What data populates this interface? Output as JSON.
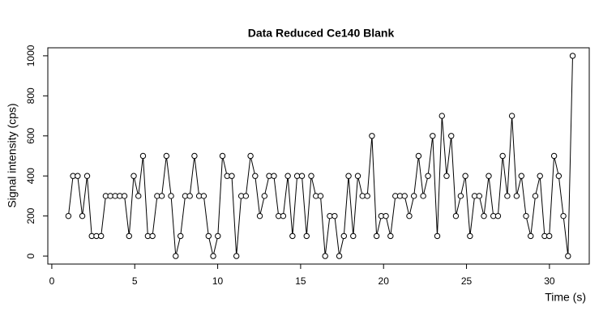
{
  "chart_data": {
    "type": "line",
    "title": "Data Reduced Ce140 Blank",
    "x_label": "Time (s)",
    "y_label": "Signal intensity (cps)",
    "x": [
      1.0,
      1.28,
      1.56,
      1.84,
      2.13,
      2.41,
      2.69,
      2.97,
      3.25,
      3.53,
      3.82,
      4.1,
      4.38,
      4.66,
      4.94,
      5.22,
      5.5,
      5.79,
      6.07,
      6.35,
      6.63,
      6.91,
      7.19,
      7.47,
      7.76,
      8.04,
      8.32,
      8.6,
      8.88,
      9.16,
      9.45,
      9.73,
      10.01,
      10.29,
      10.57,
      10.85,
      11.13,
      11.42,
      11.7,
      11.98,
      12.26,
      12.54,
      12.82,
      13.1,
      13.39,
      13.67,
      13.95,
      14.23,
      14.51,
      14.79,
      15.08,
      15.36,
      15.64,
      15.92,
      16.2,
      16.48,
      16.76,
      17.05,
      17.33,
      17.61,
      17.89,
      18.17,
      18.45,
      18.73,
      19.02,
      19.3,
      19.58,
      19.86,
      20.14,
      20.42,
      20.71,
      20.99,
      21.27,
      21.55,
      21.83,
      22.11,
      22.39,
      22.68,
      22.96,
      23.24,
      23.52,
      23.8,
      24.08,
      24.36,
      24.65,
      24.93,
      25.21,
      25.49,
      25.77,
      26.05,
      26.34,
      26.62,
      26.9,
      27.18,
      27.46,
      27.74,
      28.02,
      28.31,
      28.59,
      28.87,
      29.15,
      29.43,
      29.71,
      29.99,
      30.28,
      30.56,
      30.84,
      31.12,
      31.4
    ],
    "values": [
      200,
      400,
      400,
      200,
      400,
      100,
      100,
      100,
      300,
      300,
      300,
      300,
      300,
      100,
      400,
      300,
      500,
      100,
      100,
      300,
      300,
      500,
      300,
      0,
      100,
      300,
      300,
      500,
      300,
      300,
      100,
      0,
      100,
      500,
      400,
      400,
      0,
      300,
      300,
      500,
      400,
      200,
      300,
      400,
      400,
      200,
      200,
      400,
      100,
      400,
      400,
      100,
      400,
      300,
      300,
      0,
      200,
      200,
      0,
      100,
      400,
      100,
      400,
      300,
      300,
      600,
      100,
      200,
      200,
      100,
      300,
      300,
      300,
      200,
      300,
      500,
      300,
      400,
      600,
      100,
      700,
      400,
      600,
      200,
      300,
      400,
      100,
      300,
      300,
      200,
      400,
      200,
      200,
      500,
      300,
      700,
      300,
      400,
      200,
      100,
      300,
      400,
      100,
      100,
      500,
      400,
      200,
      0,
      1000
    ],
    "color": "#000000",
    "xlim": [
      -0.24,
      32.4
    ],
    "xticks": [
      0,
      5,
      10,
      15,
      20,
      25,
      30
    ],
    "ylim": [
      -40,
      1040
    ],
    "yticks": [
      0,
      200,
      400,
      600,
      800,
      1000
    ]
  }
}
